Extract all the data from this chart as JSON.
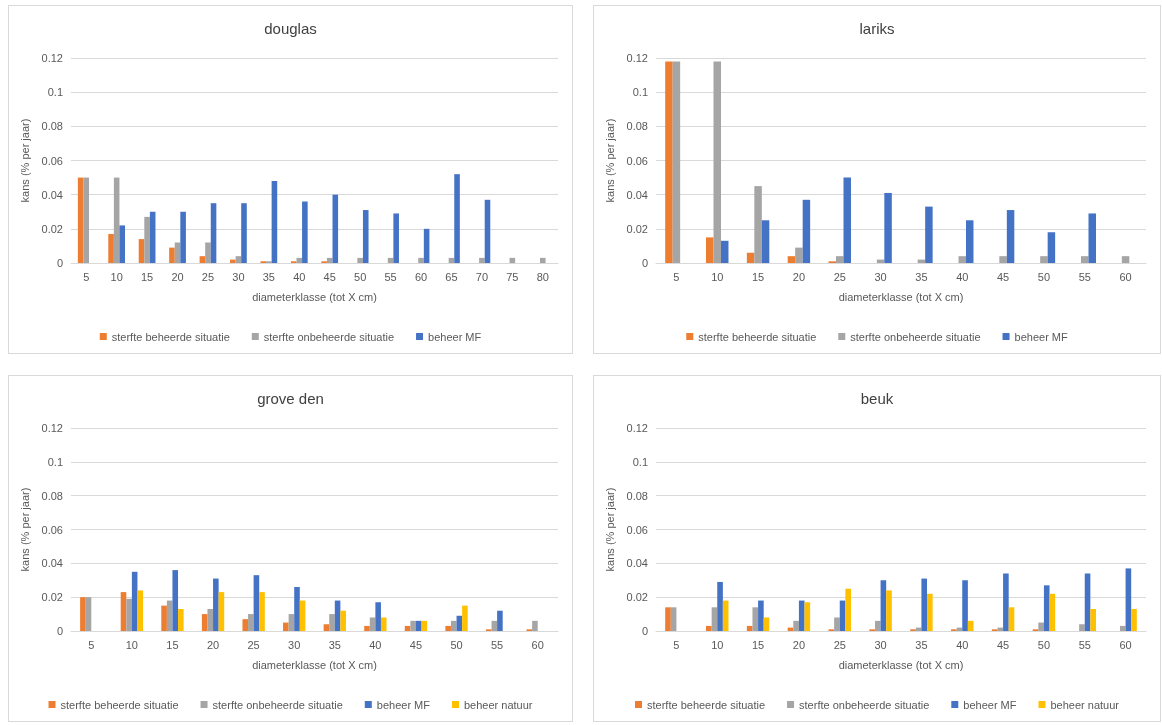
{
  "chart_data": [
    {
      "type": "bar",
      "title": "douglas",
      "xlabel": "diameterklasse (tot X cm)",
      "ylabel": "kans (% per jaar)",
      "categories": [
        "5",
        "10",
        "15",
        "20",
        "25",
        "30",
        "35",
        "40",
        "45",
        "50",
        "55",
        "60",
        "65",
        "70",
        "75",
        "80"
      ],
      "ylim": [
        0,
        0.12
      ],
      "yticks": [
        0,
        0.02,
        0.04,
        0.06,
        0.08,
        0.1,
        0.12
      ],
      "grid": "y",
      "legend": "bottom",
      "series": [
        {
          "name": "sterfte beheerde situatie",
          "color": "#ed7d31",
          "values": [
            0.05,
            0.017,
            0.014,
            0.009,
            0.004,
            0.002,
            0.001,
            0.001,
            0.001,
            null,
            null,
            null,
            null,
            null,
            null,
            null
          ]
        },
        {
          "name": "sterfte onbeheerde situatie",
          "color": "#a5a5a5",
          "values": [
            0.05,
            0.05,
            0.027,
            0.012,
            0.012,
            0.004,
            0.001,
            0.003,
            0.003,
            0.003,
            0.003,
            0.003,
            0.003,
            0.003,
            0.003,
            0.003
          ]
        },
        {
          "name": "beheer MF",
          "color": "#4472c4",
          "values": [
            null,
            0.022,
            0.03,
            0.03,
            0.035,
            0.035,
            0.048,
            0.036,
            0.04,
            0.031,
            0.029,
            0.02,
            0.052,
            0.037,
            null,
            null
          ]
        }
      ]
    },
    {
      "type": "bar",
      "title": "lariks",
      "xlabel": "diameterklasse (tot X cm)",
      "ylabel": "kans (% per jaar)",
      "categories": [
        "5",
        "10",
        "15",
        "20",
        "25",
        "30",
        "35",
        "40",
        "45",
        "50",
        "55",
        "60"
      ],
      "ylim": [
        0,
        0.12
      ],
      "yticks": [
        0,
        0.02,
        0.04,
        0.06,
        0.08,
        0.1,
        0.12
      ],
      "grid": "y",
      "legend": "bottom",
      "series": [
        {
          "name": "sterfte beheerde situatie",
          "color": "#ed7d31",
          "values": [
            0.118,
            0.015,
            0.006,
            0.004,
            0.001,
            null,
            null,
            null,
            null,
            null,
            null,
            null
          ]
        },
        {
          "name": "sterfte onbeheerde situatie",
          "color": "#a5a5a5",
          "values": [
            0.118,
            0.118,
            0.045,
            0.009,
            0.004,
            0.002,
            0.002,
            0.004,
            0.004,
            0.004,
            0.004,
            0.004
          ]
        },
        {
          "name": "beheer MF",
          "color": "#4472c4",
          "values": [
            null,
            0.013,
            0.025,
            0.037,
            0.05,
            0.041,
            0.033,
            0.025,
            0.031,
            0.018,
            0.029,
            null
          ]
        }
      ]
    },
    {
      "type": "bar",
      "title": "grove den",
      "xlabel": "diameterklasse (tot X cm)",
      "ylabel": "kans (% per jaar)",
      "categories": [
        "5",
        "10",
        "15",
        "20",
        "25",
        "30",
        "35",
        "40",
        "45",
        "50",
        "55",
        "60"
      ],
      "ylim": [
        0,
        0.12
      ],
      "yticks": [
        0,
        0.02,
        0.04,
        0.06,
        0.08,
        0.1,
        0.12
      ],
      "grid": "y",
      "legend": "bottom",
      "series": [
        {
          "name": "sterfte beheerde situatie",
          "color": "#ed7d31",
          "values": [
            0.02,
            0.023,
            0.015,
            0.01,
            0.007,
            0.005,
            0.004,
            0.003,
            0.003,
            0.003,
            0.001,
            0.001
          ]
        },
        {
          "name": "sterfte onbeheerde situatie",
          "color": "#a5a5a5",
          "values": [
            0.02,
            0.019,
            0.018,
            0.013,
            0.01,
            0.01,
            0.01,
            0.008,
            0.006,
            0.006,
            0.006,
            0.006
          ]
        },
        {
          "name": "beheer MF",
          "color": "#4472c4",
          "values": [
            null,
            0.035,
            0.036,
            0.031,
            0.033,
            0.026,
            0.018,
            0.017,
            0.006,
            0.009,
            0.012,
            null
          ]
        },
        {
          "name": "beheer natuur",
          "color": "#ffc000",
          "values": [
            null,
            0.024,
            0.013,
            0.023,
            0.023,
            0.018,
            0.012,
            0.008,
            0.006,
            0.015,
            null,
            null
          ]
        }
      ]
    },
    {
      "type": "bar",
      "title": "beuk",
      "xlabel": "diameterklasse (tot X cm)",
      "ylabel": "kans (% per jaar)",
      "categories": [
        "5",
        "10",
        "15",
        "20",
        "25",
        "30",
        "35",
        "40",
        "45",
        "50",
        "55",
        "60"
      ],
      "ylim": [
        0,
        0.12
      ],
      "yticks": [
        0,
        0.02,
        0.04,
        0.06,
        0.08,
        0.1,
        0.12
      ],
      "grid": "y",
      "legend": "bottom",
      "series": [
        {
          "name": "sterfte beheerde situatie",
          "color": "#ed7d31",
          "values": [
            0.014,
            0.003,
            0.003,
            0.002,
            0.001,
            0.001,
            0.001,
            0.001,
            0.001,
            0.001,
            null,
            null
          ]
        },
        {
          "name": "sterfte onbeheerde situatie",
          "color": "#a5a5a5",
          "values": [
            0.014,
            0.014,
            0.014,
            0.006,
            0.008,
            0.006,
            0.002,
            0.002,
            0.002,
            0.005,
            0.004,
            0.003
          ]
        },
        {
          "name": "beheer MF",
          "color": "#4472c4",
          "values": [
            null,
            0.029,
            0.018,
            0.018,
            0.018,
            0.03,
            0.031,
            0.03,
            0.034,
            0.027,
            0.034,
            0.037
          ]
        },
        {
          "name": "beheer natuur",
          "color": "#ffc000",
          "values": [
            null,
            0.018,
            0.008,
            0.017,
            0.025,
            0.024,
            0.022,
            0.006,
            0.014,
            0.022,
            0.013,
            0.013
          ]
        }
      ]
    }
  ]
}
